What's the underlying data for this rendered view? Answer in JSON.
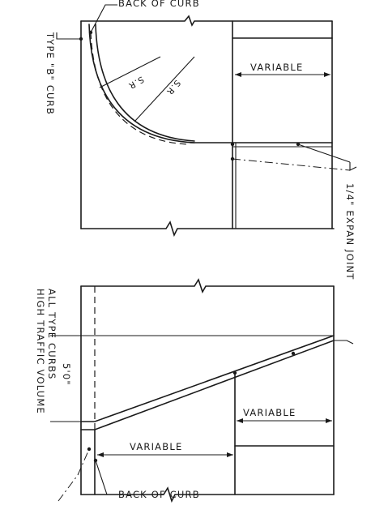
{
  "labels": {
    "back_of_curb_top": "BACK OF CURB",
    "type_b_curb": "TYPE \"B\" CURB",
    "radius_inner": "S.R",
    "radius_outer": "S.R",
    "variable_top": "VARIABLE",
    "expansion_joint": "1/4\" EXPAN JOINT",
    "all_type_curbs": "ALL TYPE CURBS",
    "high_traffic_volume": "HIGH TRAFFIC VOLUME",
    "dimension_5ft": "5'0\"",
    "variable_right": "VARIABLE",
    "variable_bottom": "VARIABLE",
    "back_of_curb_bottom": "BACK OF CURB"
  }
}
